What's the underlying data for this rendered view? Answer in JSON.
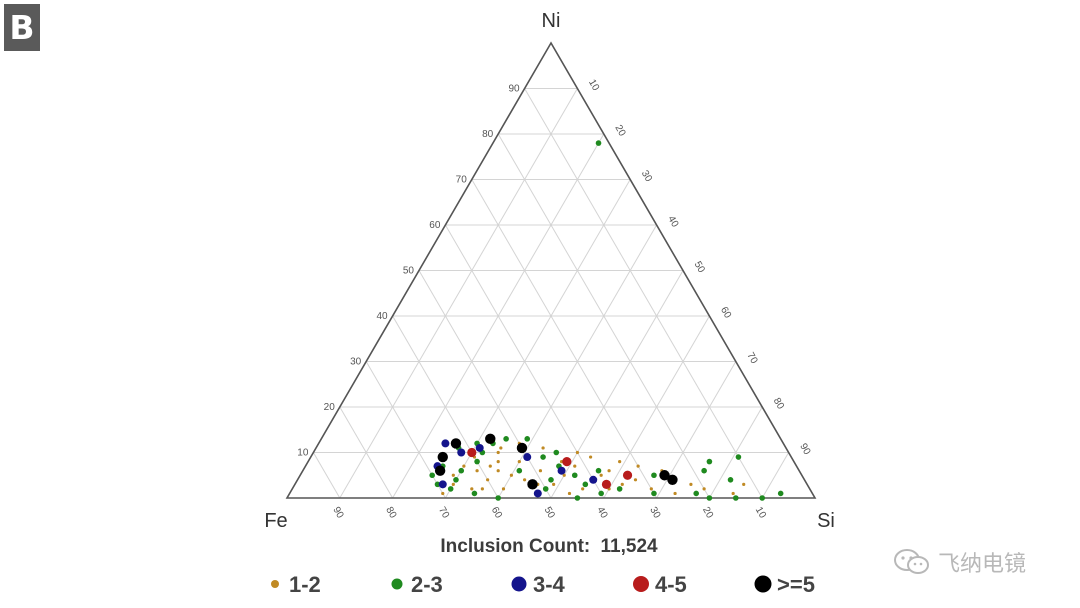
{
  "panel_label": "B",
  "watermark": {
    "text": "飞纳电镜",
    "icon": "wechat-logo-icon"
  },
  "chart_data": {
    "type": "scatter",
    "subtype": "ternary",
    "corners": {
      "top": "Ni",
      "left": "Fe",
      "right": "Si"
    },
    "tick_values": [
      10,
      20,
      30,
      40,
      50,
      60,
      70,
      80,
      90
    ],
    "left_edge_ticks": [
      "10",
      "20",
      "30",
      "40",
      "50",
      "60",
      "70",
      "80",
      "90"
    ],
    "right_edge_ticks": [
      "10",
      "20",
      "30",
      "40",
      "50",
      "60",
      "70",
      "80",
      "90"
    ],
    "bottom_edge_ticks": [
      "90",
      "80",
      "70",
      "60",
      "50",
      "40",
      "30",
      "20",
      "10"
    ],
    "grid": true,
    "caption_label": "Inclusion Count:",
    "caption_value": "11,524",
    "legend_position": "bottom",
    "legend": [
      {
        "label": "1-2",
        "color": "#c08a24"
      },
      {
        "label": "2-3",
        "color": "#1f8a1f"
      },
      {
        "label": "3-4",
        "color": "#14148c"
      },
      {
        "label": "4-5",
        "color": "#b81c1c"
      },
      {
        "label": ">=5",
        "color": "#000000"
      }
    ],
    "series": [
      {
        "label": "1-2",
        "points": [
          [
            2,
            64,
            34
          ],
          [
            4,
            60,
            36
          ],
          [
            6,
            57,
            37
          ],
          [
            8,
            52,
            40
          ],
          [
            3,
            67,
            30
          ],
          [
            5,
            55,
            40
          ],
          [
            7,
            58,
            35
          ],
          [
            9,
            50,
            41
          ],
          [
            2,
            62,
            36
          ],
          [
            6,
            61,
            33
          ],
          [
            4,
            53,
            43
          ],
          [
            8,
            56,
            36
          ],
          [
            10,
            55,
            35
          ],
          [
            3,
            48,
            49
          ],
          [
            1,
            46,
            53
          ],
          [
            2,
            43,
            55
          ],
          [
            5,
            45,
            50
          ],
          [
            4,
            40,
            56
          ],
          [
            2,
            38,
            60
          ],
          [
            7,
            42,
            51
          ],
          [
            3,
            35,
            62
          ],
          [
            9,
            47,
            44
          ],
          [
            11,
            54,
            35
          ],
          [
            6,
            49,
            45
          ],
          [
            8,
            44,
            48
          ],
          [
            5,
            66,
            29
          ],
          [
            7,
            63,
            30
          ],
          [
            1,
            70,
            29
          ],
          [
            2,
            58,
            40
          ],
          [
            3,
            51,
            46
          ],
          [
            5,
            38,
            57
          ],
          [
            6,
            36,
            58
          ],
          [
            9,
            38,
            53
          ],
          [
            4,
            32,
            64
          ],
          [
            2,
            30,
            68
          ],
          [
            1,
            26,
            73
          ],
          [
            7,
            30,
            63
          ],
          [
            3,
            22,
            75
          ],
          [
            10,
            40,
            50
          ],
          [
            8,
            33,
            59
          ],
          [
            5,
            28,
            67
          ],
          [
            2,
            20,
            78
          ],
          [
            1,
            15,
            84
          ],
          [
            6,
            26,
            68
          ],
          [
            3,
            12,
            85
          ],
          [
            11,
            46,
            43
          ],
          [
            9,
            60,
            31
          ],
          [
            12,
            50,
            38
          ]
        ]
      },
      {
        "label": "2-3",
        "points": [
          [
            2,
            68,
            30
          ],
          [
            4,
            66,
            30
          ],
          [
            6,
            64,
            30
          ],
          [
            8,
            60,
            32
          ],
          [
            10,
            58,
            32
          ],
          [
            12,
            55,
            33
          ],
          [
            13,
            52,
            35
          ],
          [
            11,
            50,
            39
          ],
          [
            9,
            47,
            44
          ],
          [
            7,
            45,
            48
          ],
          [
            5,
            43,
            52
          ],
          [
            3,
            42,
            55
          ],
          [
            1,
            40,
            59
          ],
          [
            2,
            36,
            62
          ],
          [
            1,
            30,
            69
          ],
          [
            1,
            22,
            77
          ],
          [
            0,
            20,
            80
          ],
          [
            0,
            15,
            85
          ],
          [
            0,
            10,
            90
          ],
          [
            1,
            6,
            93
          ],
          [
            8,
            16,
            76
          ],
          [
            6,
            18,
            76
          ],
          [
            4,
            14,
            82
          ],
          [
            9,
            10,
            81
          ],
          [
            11,
            62,
            27
          ],
          [
            12,
            58,
            30
          ],
          [
            13,
            48,
            39
          ],
          [
            10,
            44,
            46
          ],
          [
            5,
            70,
            25
          ],
          [
            3,
            70,
            27
          ],
          [
            7,
            67,
            26
          ],
          [
            4,
            48,
            48
          ],
          [
            2,
            50,
            48
          ],
          [
            6,
            53,
            41
          ],
          [
            78,
            2,
            20
          ],
          [
            1,
            64,
            35
          ],
          [
            0,
            60,
            40
          ],
          [
            0,
            45,
            55
          ],
          [
            6,
            38,
            56
          ],
          [
            5,
            28,
            67
          ]
        ]
      },
      {
        "label": "3-4",
        "points": [
          [
            7,
            68,
            25
          ],
          [
            12,
            64,
            24
          ],
          [
            13,
            55,
            32
          ],
          [
            10,
            62,
            28
          ],
          [
            3,
            69,
            28
          ],
          [
            6,
            45,
            49
          ],
          [
            4,
            40,
            56
          ],
          [
            1,
            52,
            47
          ],
          [
            9,
            50,
            41
          ],
          [
            11,
            58,
            31
          ]
        ]
      },
      {
        "label": "4-5",
        "points": [
          [
            10,
            60,
            30
          ],
          [
            5,
            33,
            62
          ],
          [
            3,
            38,
            59
          ],
          [
            8,
            43,
            49
          ]
        ]
      },
      {
        "label": ">=5",
        "points": [
          [
            12,
            62,
            26
          ],
          [
            13,
            55,
            32
          ],
          [
            11,
            50,
            39
          ],
          [
            6,
            68,
            26
          ],
          [
            4,
            25,
            71
          ],
          [
            5,
            26,
            69
          ],
          [
            9,
            66,
            25
          ],
          [
            3,
            52,
            45
          ]
        ]
      }
    ]
  }
}
